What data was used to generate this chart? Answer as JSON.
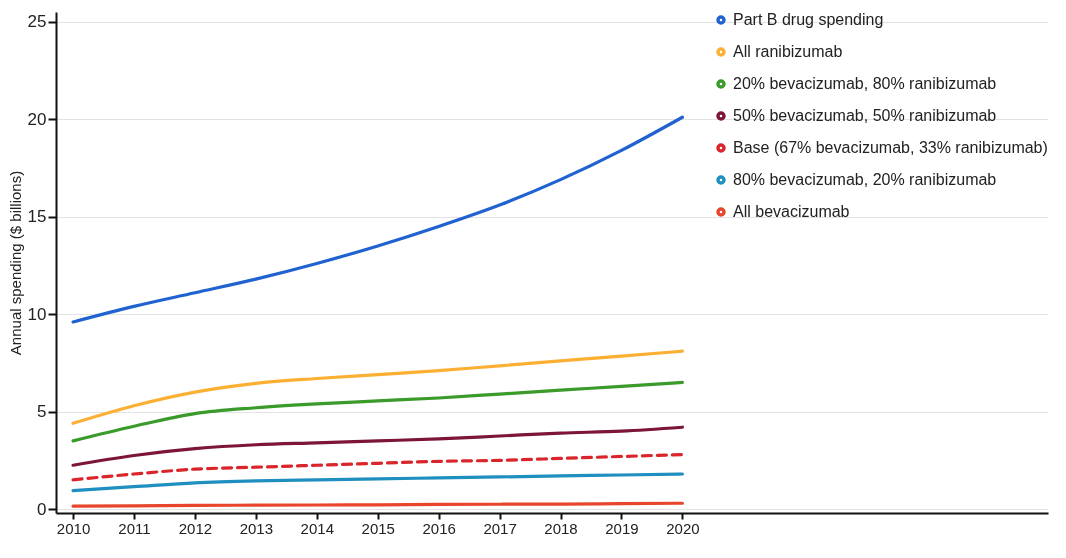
{
  "chart_data": {
    "type": "line",
    "ylabel": "Annual spending ($ billions)",
    "x": [
      2010,
      2011,
      2012,
      2013,
      2014,
      2015,
      2016,
      2017,
      2018,
      2019,
      2020
    ],
    "xlim": [
      2009.72,
      2026
    ],
    "xticks": [
      2010,
      2011,
      2012,
      2013,
      2014,
      2015,
      2016,
      2017,
      2018,
      2019,
      2020
    ],
    "ylim": [
      -0.2,
      25.5
    ],
    "yticks": [
      0,
      5,
      10,
      15,
      20,
      25
    ],
    "grid": "y",
    "legend": "top right",
    "series": [
      {
        "name": "Part B drug spending",
        "color": "#1f62d0",
        "values": [
          9.6,
          10.4,
          11.1,
          11.8,
          12.6,
          13.5,
          14.5,
          15.6,
          16.9,
          18.4,
          20.1
        ]
      },
      {
        "name": "All ranibizumab",
        "color": "#fbb034",
        "values": [
          4.4,
          5.3,
          6.0,
          6.45,
          6.7,
          6.9,
          7.1,
          7.35,
          7.6,
          7.85,
          8.1
        ]
      },
      {
        "name": "20% bevacizumab, 80% ranibizumab",
        "color": "#3a9a2a",
        "values": [
          3.5,
          4.25,
          4.9,
          5.2,
          5.4,
          5.55,
          5.7,
          5.9,
          6.1,
          6.3,
          6.5
        ]
      },
      {
        "name": "50% bevacizumab, 50% ranibizumab",
        "color": "#7d1538",
        "values": [
          2.25,
          2.75,
          3.1,
          3.3,
          3.4,
          3.5,
          3.6,
          3.75,
          3.9,
          4.0,
          4.2
        ]
      },
      {
        "name": "Base (67% bevacizumab, 33% ranibizumab)",
        "color": "#d9252b",
        "line_style": "dashed",
        "values": [
          1.5,
          1.8,
          2.05,
          2.15,
          2.25,
          2.35,
          2.45,
          2.5,
          2.6,
          2.7,
          2.8
        ]
      },
      {
        "name": "80% bevacizumab, 20% ranibizumab",
        "color": "#1f8fc0",
        "values": [
          0.95,
          1.15,
          1.35,
          1.45,
          1.5,
          1.55,
          1.6,
          1.65,
          1.7,
          1.75,
          1.8
        ]
      },
      {
        "name": "All bevacizumab",
        "color": "#e8452c",
        "values": [
          0.15,
          0.17,
          0.19,
          0.2,
          0.21,
          0.22,
          0.24,
          0.25,
          0.26,
          0.28,
          0.3
        ]
      }
    ]
  }
}
